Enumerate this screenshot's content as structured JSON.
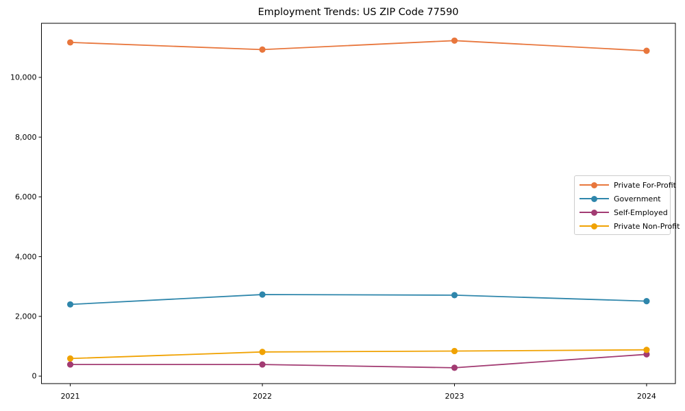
{
  "chart_data": {
    "type": "line",
    "title": "Employment Trends: US ZIP Code 77590",
    "xlabel": "",
    "ylabel": "",
    "x": [
      2021,
      2022,
      2023,
      2024
    ],
    "x_tick_labels": [
      "2021",
      "2022",
      "2023",
      "2024"
    ],
    "series": [
      {
        "name": "Private For-Profit",
        "color": "#E8763C",
        "values": [
          11170,
          10930,
          11230,
          10890
        ]
      },
      {
        "name": "Government",
        "color": "#2E86AB",
        "values": [
          2400,
          2730,
          2710,
          2510
        ]
      },
      {
        "name": "Self-Employed",
        "color": "#A23B72",
        "values": [
          390,
          390,
          280,
          730
        ]
      },
      {
        "name": "Private Non-Profit",
        "color": "#F0A202",
        "values": [
          590,
          810,
          840,
          880
        ]
      }
    ],
    "y_ticks": [
      0,
      2000,
      4000,
      6000,
      8000,
      10000
    ],
    "y_tick_labels": [
      "0",
      "2,000",
      "4,000",
      "6,000",
      "8,000",
      "10,000"
    ],
    "ylim": [
      -250,
      11810
    ],
    "xlim": [
      -0.15,
      3.15
    ],
    "grid": false,
    "legend_position": "center-right",
    "marker": "circle",
    "axis_color": "#000000",
    "plot_background": "#ffffff"
  }
}
